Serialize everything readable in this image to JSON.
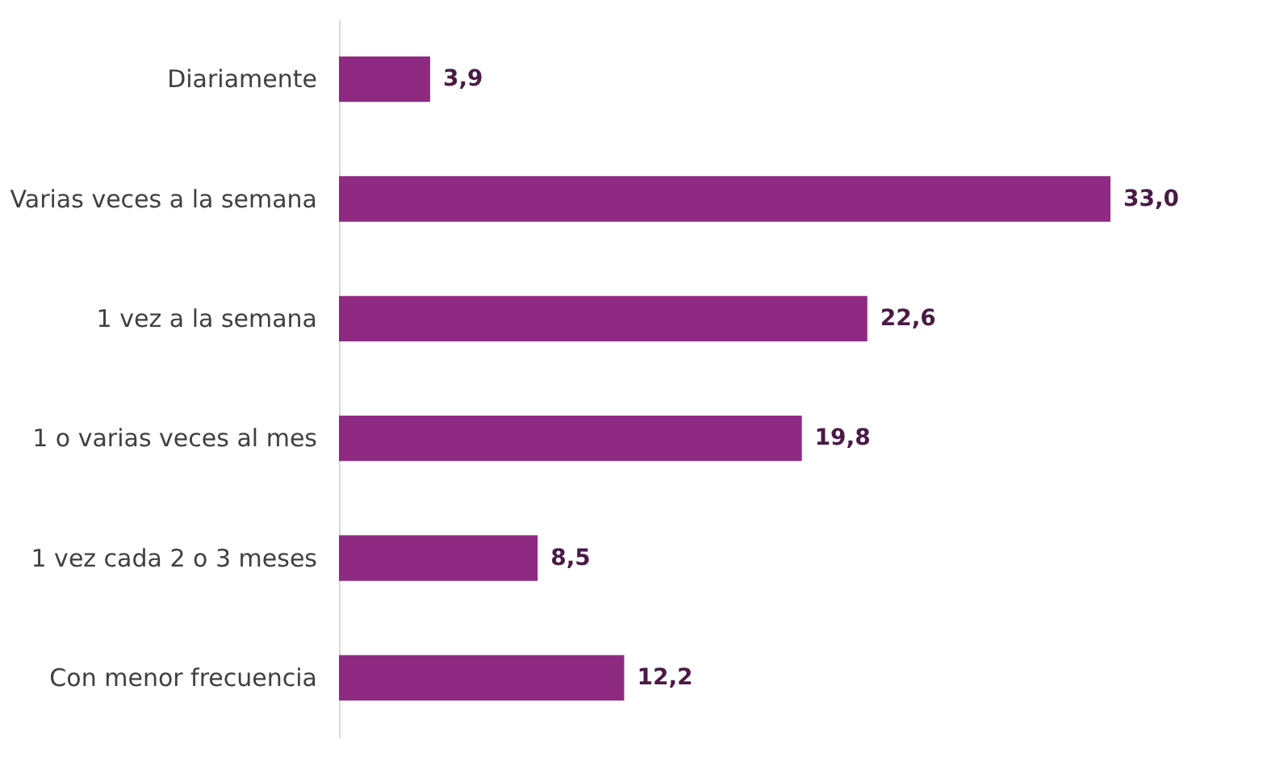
{
  "chart_data": {
    "type": "bar",
    "orientation": "horizontal",
    "categories": [
      "Diariamente",
      "Varias veces a la semana",
      "1 vez a la semana",
      "1 o varias veces al mes",
      "1 vez cada 2 o 3 meses",
      "Con menor frecuencia"
    ],
    "values": [
      3.9,
      33.0,
      22.6,
      19.8,
      8.5,
      12.2
    ],
    "value_labels": [
      "3,9",
      "33,0",
      "22,6",
      "19,8",
      "8,5",
      "12,2"
    ],
    "color": "#8e2a82",
    "grid": false,
    "tick_labels": "y"
  }
}
